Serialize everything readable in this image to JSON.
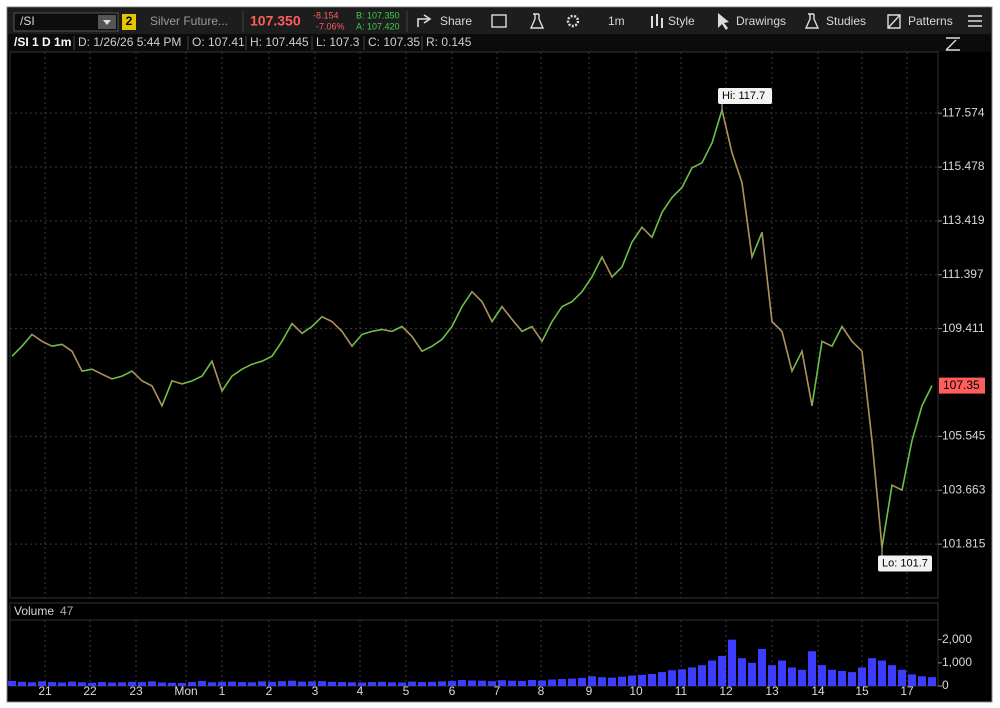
{
  "toolbar": {
    "symbol": "/SI",
    "link_group": "2",
    "description": "Silver Future...",
    "last": "107.350",
    "net_change": "-8.154",
    "percent_change": "-7.06%",
    "bid": "B: 107.350",
    "ask": "A: 107.420",
    "share": "Share",
    "timeframe": "1m",
    "style": "Style",
    "drawings": "Drawings",
    "studies": "Studies",
    "patterns": "Patterns"
  },
  "info_bar": [
    "/SI 1 D 1m",
    "D: 1/26/26 5:44 PM",
    "O: 107.41",
    "H: 107.445",
    "L: 107.3",
    "C: 107.35",
    "R: 0.145"
  ],
  "chart_data": [
    {
      "type": "line",
      "log_scale": true,
      "grid": true,
      "xlim": [
        -0.2,
        92.6
      ],
      "xticks": [
        {
          "value": 3.3,
          "label": "21"
        },
        {
          "value": 7.8,
          "label": "22"
        },
        {
          "value": 12.4,
          "label": "23"
        },
        {
          "value": 17.4,
          "label": "Mon"
        },
        {
          "value": 21,
          "label": "1"
        },
        {
          "value": 25.7,
          "label": "2"
        },
        {
          "value": 30.3,
          "label": "3"
        },
        {
          "value": 34.8,
          "label": "4"
        },
        {
          "value": 39.4,
          "label": "5"
        },
        {
          "value": 44,
          "label": "6"
        },
        {
          "value": 48.5,
          "label": "7"
        },
        {
          "value": 52.9,
          "label": "8"
        },
        {
          "value": 57.7,
          "label": "9"
        },
        {
          "value": 62.4,
          "label": "10"
        },
        {
          "value": 66.9,
          "label": "11"
        },
        {
          "value": 71.4,
          "label": "12"
        },
        {
          "value": 76,
          "label": "13"
        },
        {
          "value": 80.6,
          "label": "14"
        },
        {
          "value": 85,
          "label": "15"
        },
        {
          "value": 89.5,
          "label": "17"
        }
      ],
      "ylim": [
        100,
        120
      ],
      "yticks": [
        101.815,
        103.663,
        105.545,
        109.411,
        111.397,
        113.419,
        115.478,
        117.574
      ],
      "annotations": [
        "Hi: 117.7",
        "Lo: 101.7"
      ],
      "series": [
        {
          "name": "/SI",
          "color": "#6cc04a",
          "values": [
            108.41,
            108.77,
            109.2,
            108.95,
            108.77,
            108.84,
            108.59,
            107.87,
            107.94,
            107.76,
            107.59,
            107.69,
            107.87,
            107.52,
            107.34,
            106.63,
            107.52,
            107.41,
            107.52,
            107.69,
            108.23,
            107.16,
            107.69,
            107.94,
            108.12,
            108.23,
            108.41,
            108.95,
            109.6,
            109.24,
            109.49,
            109.85,
            109.67,
            109.31,
            108.77,
            109.2,
            109.31,
            109.38,
            109.31,
            109.49,
            109.13,
            108.59,
            108.77,
            109.02,
            109.49,
            110.22,
            110.77,
            110.4,
            109.67,
            110.22,
            109.75,
            109.31,
            109.49,
            108.95,
            109.67,
            110.22,
            110.4,
            110.77,
            111.32,
            112.06,
            111.32,
            111.69,
            112.62,
            113.18,
            112.8,
            113.74,
            114.31,
            114.69,
            115.45,
            115.64,
            116.41,
            117.7,
            116.03,
            114.88,
            112.06,
            112.99,
            109.67,
            109.31,
            107.87,
            108.59,
            106.63,
            108.95,
            108.77,
            109.49,
            108.95,
            108.59,
            105.4,
            101.7,
            103.84,
            103.67,
            105.4,
            106.63,
            107.35
          ]
        }
      ]
    },
    {
      "type": "bar",
      "title": "Volume",
      "subtitle": "47",
      "color": "#3d3dff",
      "xlim": [
        -0.2,
        92.6
      ],
      "ylim": [
        0,
        2850
      ],
      "yticks": [
        0,
        {
          "value": 1000,
          "label": "1,000"
        },
        {
          "value": 2000,
          "label": "2,000"
        }
      ],
      "values": [
        220,
        180,
        160,
        200,
        170,
        150,
        190,
        160,
        140,
        170,
        150,
        160,
        180,
        170,
        200,
        150,
        140,
        130,
        170,
        220,
        160,
        180,
        190,
        170,
        160,
        200,
        180,
        210,
        230,
        190,
        200,
        210,
        180,
        170,
        160,
        150,
        170,
        180,
        160,
        150,
        190,
        170,
        180,
        200,
        220,
        260,
        240,
        230,
        210,
        250,
        230,
        220,
        260,
        240,
        280,
        300,
        320,
        350,
        420,
        380,
        360,
        400,
        450,
        480,
        520,
        600,
        680,
        720,
        800,
        900,
        1100,
        1300,
        2000,
        1200,
        1000,
        1600,
        900,
        1100,
        800,
        700,
        1500,
        900,
        700,
        650,
        600,
        800,
        1200,
        1100,
        900,
        700,
        500,
        420,
        380
      ]
    }
  ]
}
